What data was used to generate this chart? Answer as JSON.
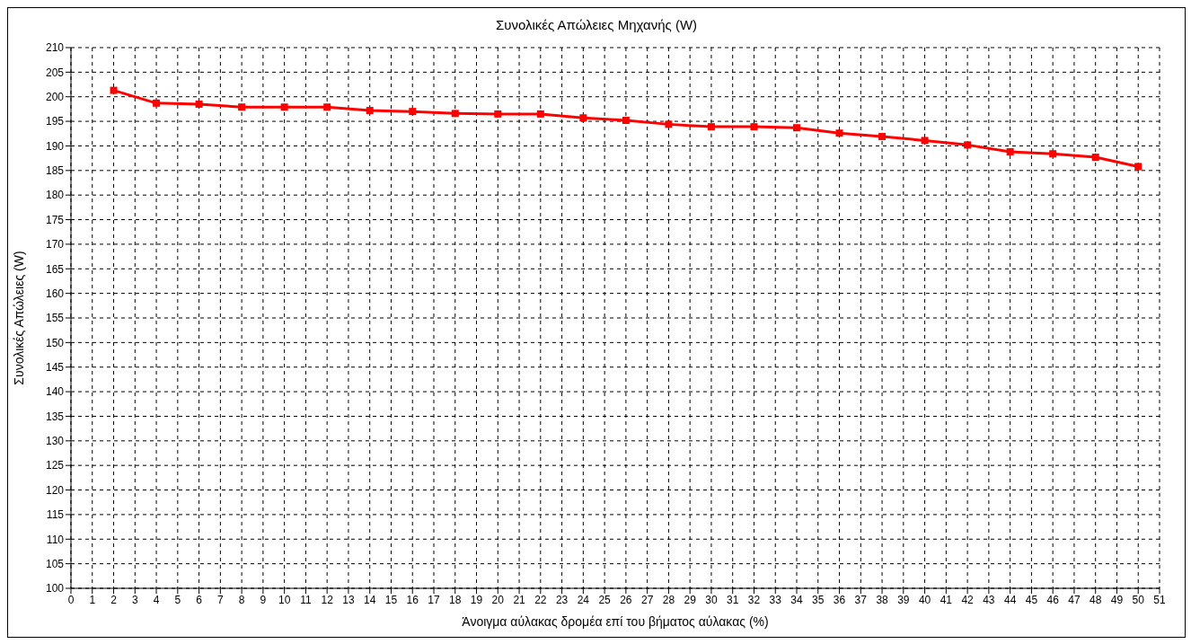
{
  "chart_data": {
    "type": "line",
    "title": "Συνολικές Απώλειες Μηχανής (W)",
    "xlabel": "Άνοιγμα αύλακας δρομέα επί του βήματος αύλακας (%)",
    "ylabel": "Συνολικές Απώλειες  (W)",
    "x": [
      2,
      4,
      6,
      8,
      10,
      12,
      14,
      16,
      18,
      20,
      22,
      24,
      26,
      28,
      30,
      32,
      34,
      36,
      38,
      40,
      42,
      44,
      46,
      48,
      50
    ],
    "series": [
      {
        "color": "#ff0000",
        "values": [
          201.3,
          198.7,
          198.5,
          197.9,
          197.9,
          197.9,
          197.2,
          197.0,
          196.6,
          196.5,
          196.5,
          195.7,
          195.2,
          194.4,
          193.9,
          193.9,
          193.7,
          192.6,
          191.9,
          191.1,
          190.2,
          188.8,
          188.4,
          187.7,
          185.8
        ]
      }
    ],
    "xlim": [
      0,
      51
    ],
    "xticks": [
      0,
      1,
      2,
      3,
      4,
      5,
      6,
      7,
      8,
      9,
      10,
      11,
      12,
      13,
      14,
      15,
      16,
      17,
      18,
      19,
      20,
      21,
      22,
      23,
      24,
      25,
      26,
      27,
      28,
      29,
      30,
      31,
      32,
      33,
      34,
      35,
      36,
      37,
      38,
      39,
      40,
      41,
      42,
      43,
      44,
      45,
      46,
      47,
      48,
      49,
      50,
      51
    ],
    "ylim": [
      100,
      210
    ],
    "yticks": [
      100,
      105,
      110,
      115,
      120,
      125,
      130,
      135,
      140,
      145,
      150,
      155,
      160,
      165,
      170,
      175,
      180,
      185,
      190,
      195,
      200,
      205,
      210
    ],
    "grid": true,
    "marker": "square",
    "line_style": "solid"
  }
}
